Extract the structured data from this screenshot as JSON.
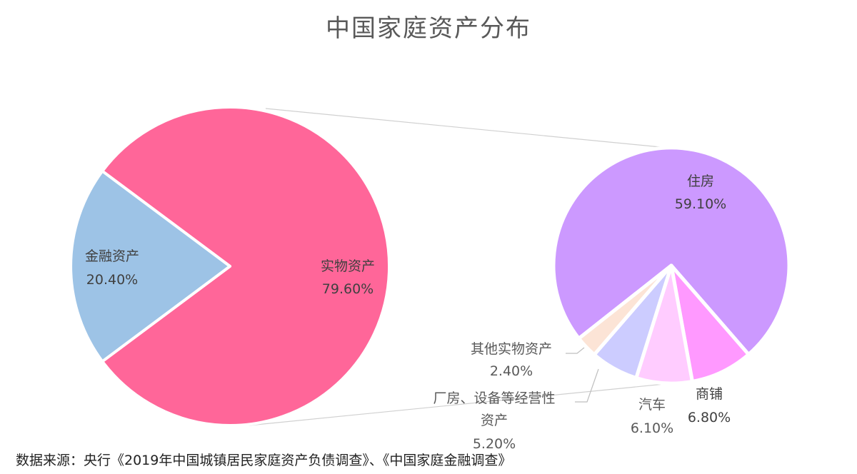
{
  "chart_data": {
    "type": "bar-of-pie",
    "title": "中国家庭资产分布",
    "main_pie": [
      {
        "name": "金融资产",
        "value": 20.4,
        "label": "20.40%",
        "color": "#9DC3E6"
      },
      {
        "name": "实物资产",
        "value": 79.6,
        "label": "79.60%",
        "color": "#FF6699"
      }
    ],
    "sub_pie": [
      {
        "name": "住房",
        "value": 59.1,
        "label": "59.10%",
        "color": "#CC99FF"
      },
      {
        "name": "商铺",
        "value": 6.8,
        "label": "6.80%",
        "color": "#FF99FF"
      },
      {
        "name": "汽车",
        "value": 6.1,
        "label": "6.10%",
        "color": "#FFCCFF"
      },
      {
        "name": "厂房、设备等经营性资产",
        "value": 5.2,
        "label": "5.20%",
        "color": "#CCCCFF"
      },
      {
        "name": "其他实物资产",
        "value": 2.4,
        "label": "2.40%",
        "color": "#FCE4D6"
      }
    ]
  },
  "source": "数据来源：央行《2019年中国城镇居民家庭资产负债调查》、《中国家庭金融调查》"
}
